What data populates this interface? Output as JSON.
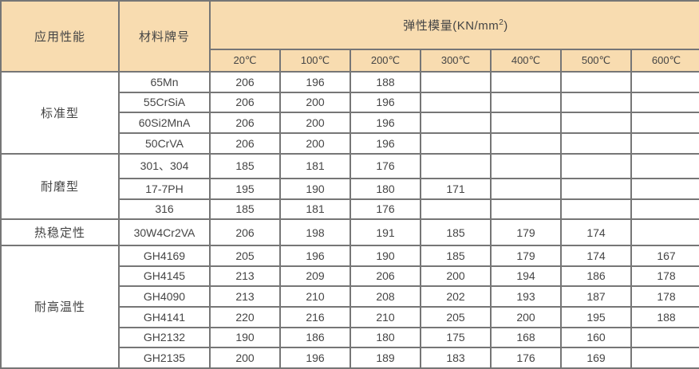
{
  "header": {
    "application": "应用性能",
    "grade": "材料牌号",
    "modulus_prefix": "弹性模量(KN/mm",
    "modulus_sup": "2",
    "modulus_suffix": ")",
    "temps": [
      "20℃",
      "100℃",
      "200℃",
      "300℃",
      "400℃",
      "500℃",
      "600℃"
    ]
  },
  "groups": [
    {
      "name": "标准型",
      "rows": [
        {
          "grade": "65Mn",
          "values": [
            "206",
            "196",
            "188",
            "",
            "",
            "",
            ""
          ]
        },
        {
          "grade": "55CrSiA",
          "values": [
            "206",
            "200",
            "196",
            "",
            "",
            "",
            ""
          ]
        },
        {
          "grade": "60Si2MnA",
          "values": [
            "206",
            "200",
            "196",
            "",
            "",
            "",
            ""
          ]
        },
        {
          "grade": "50CrVA",
          "values": [
            "206",
            "200",
            "196",
            "",
            "",
            "",
            ""
          ]
        }
      ]
    },
    {
      "name": "耐磨型",
      "rows": [
        {
          "grade": "301、304",
          "values": [
            "185",
            "181",
            "176",
            "",
            "",
            "",
            ""
          ]
        },
        {
          "grade": "17-7PH",
          "values": [
            "195",
            "190",
            "180",
            "171",
            "",
            "",
            ""
          ]
        },
        {
          "grade": "316",
          "values": [
            "185",
            "181",
            "176",
            "",
            "",
            "",
            ""
          ]
        }
      ]
    },
    {
      "name": "热稳定性",
      "rows": [
        {
          "grade": "30W4Cr2VA",
          "values": [
            "206",
            "198",
            "191",
            "185",
            "179",
            "174",
            ""
          ]
        }
      ]
    },
    {
      "name": "耐高温性",
      "rows": [
        {
          "grade": "GH4169",
          "values": [
            "205",
            "196",
            "190",
            "185",
            "179",
            "174",
            "167"
          ]
        },
        {
          "grade": "GH4145",
          "values": [
            "213",
            "209",
            "206",
            "200",
            "194",
            "186",
            "178"
          ]
        },
        {
          "grade": "GH4090",
          "values": [
            "213",
            "210",
            "208",
            "202",
            "193",
            "187",
            "178"
          ]
        },
        {
          "grade": "GH4141",
          "values": [
            "220",
            "216",
            "210",
            "205",
            "200",
            "195",
            "188"
          ]
        },
        {
          "grade": "GH2132",
          "values": [
            "190",
            "186",
            "180",
            "175",
            "168",
            "160",
            ""
          ]
        },
        {
          "grade": "GH2135",
          "values": [
            "200",
            "196",
            "189",
            "183",
            "176",
            "169",
            ""
          ]
        }
      ]
    }
  ],
  "colors": {
    "header_bg": "#f8dcb0",
    "border": "#767676",
    "text": "#454545"
  },
  "chart_data": {
    "type": "table",
    "title": "弹性模量(KN/mm²)",
    "columns": [
      "应用性能",
      "材料牌号",
      "20℃",
      "100℃",
      "200℃",
      "300℃",
      "400℃",
      "500℃",
      "600℃"
    ],
    "rows": [
      [
        "标准型",
        "65Mn",
        206,
        196,
        188,
        null,
        null,
        null,
        null
      ],
      [
        "标准型",
        "55CrSiA",
        206,
        200,
        196,
        null,
        null,
        null,
        null
      ],
      [
        "标准型",
        "60Si2MnA",
        206,
        200,
        196,
        null,
        null,
        null,
        null
      ],
      [
        "标准型",
        "50CrVA",
        206,
        200,
        196,
        null,
        null,
        null,
        null
      ],
      [
        "耐磨型",
        "301、304",
        185,
        181,
        176,
        null,
        null,
        null,
        null
      ],
      [
        "耐磨型",
        "17-7PH",
        195,
        190,
        180,
        171,
        null,
        null,
        null
      ],
      [
        "耐磨型",
        "316",
        185,
        181,
        176,
        null,
        null,
        null,
        null
      ],
      [
        "热稳定性",
        "30W4Cr2VA",
        206,
        198,
        191,
        185,
        179,
        174,
        null
      ],
      [
        "耐高温性",
        "GH4169",
        205,
        196,
        190,
        185,
        179,
        174,
        167
      ],
      [
        "耐高温性",
        "GH4145",
        213,
        209,
        206,
        200,
        194,
        186,
        178
      ],
      [
        "耐高温性",
        "GH4090",
        213,
        210,
        208,
        202,
        193,
        187,
        178
      ],
      [
        "耐高温性",
        "GH4141",
        220,
        216,
        210,
        205,
        200,
        195,
        188
      ],
      [
        "耐高温性",
        "GH2132",
        190,
        186,
        180,
        175,
        168,
        160,
        null
      ],
      [
        "耐高温性",
        "GH2135",
        200,
        196,
        189,
        183,
        176,
        169,
        null
      ]
    ]
  }
}
